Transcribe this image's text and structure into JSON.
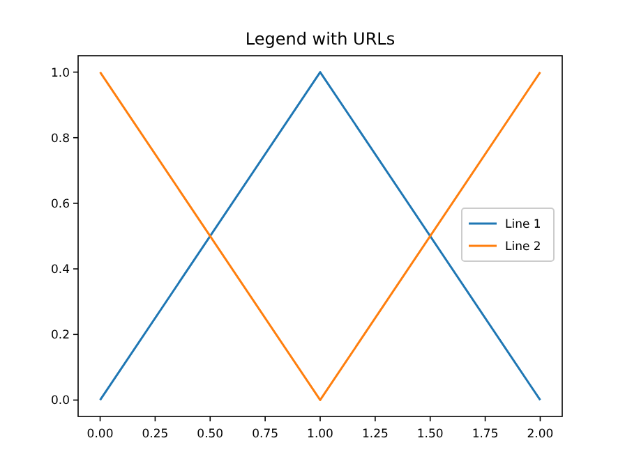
{
  "chart_data": {
    "type": "line",
    "title": "Legend with URLs",
    "x": [
      0,
      1,
      2
    ],
    "series": [
      {
        "name": "Line 1",
        "color": "#1f77b4",
        "values": [
          0,
          1,
          0
        ]
      },
      {
        "name": "Line 2",
        "color": "#ff7f0e",
        "values": [
          1,
          0,
          1
        ]
      }
    ],
    "xlim": [
      -0.1,
      2.1
    ],
    "xticks": [
      {
        "value": 0,
        "label": "0.00"
      },
      {
        "value": 0.25,
        "label": "0.25"
      },
      {
        "value": 0.5,
        "label": "0.50"
      },
      {
        "value": 0.75,
        "label": "0.75"
      },
      {
        "value": 1,
        "label": "1.00"
      },
      {
        "value": 1.25,
        "label": "1.25"
      },
      {
        "value": 1.5,
        "label": "1.50"
      },
      {
        "value": 1.75,
        "label": "1.75"
      },
      {
        "value": 2,
        "label": "2.00"
      }
    ],
    "ylim": [
      -0.05,
      1.05
    ],
    "yticks": [
      {
        "value": 0,
        "label": "0.0"
      },
      {
        "value": 0.2,
        "label": "0.2"
      },
      {
        "value": 0.4,
        "label": "0.4"
      },
      {
        "value": 0.6,
        "label": "0.6"
      },
      {
        "value": 0.8,
        "label": "0.8"
      },
      {
        "value": 1,
        "label": "1.0"
      }
    ],
    "grid": false,
    "legend": "right",
    "line_style": "solid"
  }
}
